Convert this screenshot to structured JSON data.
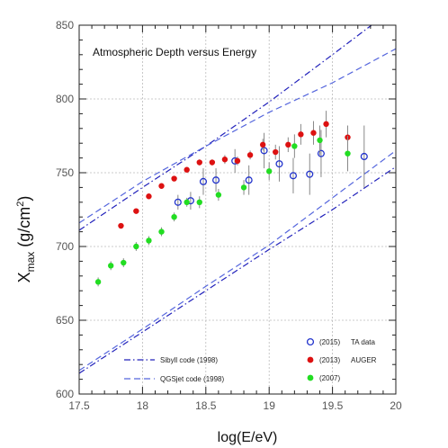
{
  "chart_data": {
    "type": "scatter",
    "title": "Atmospheric Depth versus Energy",
    "xlabel": "log(E/eV)",
    "ylabel_main": "X",
    "ylabel_sub": "max",
    "ylabel_unit_open": " (g/cm",
    "ylabel_unit_sup": "2",
    "ylabel_unit_close": ")",
    "xlim": [
      17.5,
      20
    ],
    "ylim": [
      600,
      850
    ],
    "x_ticks": [
      {
        "value": 17.5,
        "label": "17.5"
      },
      {
        "value": 18.0,
        "label": "18"
      },
      {
        "value": 18.5,
        "label": "18.5"
      },
      {
        "value": 19.0,
        "label": "19"
      },
      {
        "value": 19.5,
        "label": "19.5"
      },
      {
        "value": 20.0,
        "label": "20"
      }
    ],
    "y_ticks": [
      {
        "value": 600,
        "label": "600"
      },
      {
        "value": 650,
        "label": "650"
      },
      {
        "value": 700,
        "label": "700"
      },
      {
        "value": 750,
        "label": "750"
      },
      {
        "value": 800,
        "label": "800"
      },
      {
        "value": 850,
        "label": "850"
      }
    ],
    "grid": true,
    "legend_position": "bottom-right",
    "series": [
      {
        "name": "TA data",
        "year_label": "(2015)",
        "marker": "open-circle",
        "color": "#2233cc",
        "points": [
          {
            "x": 18.28,
            "y": 730,
            "err": 5
          },
          {
            "x": 18.38,
            "y": 731,
            "err": 6
          },
          {
            "x": 18.48,
            "y": 744,
            "err": 9
          },
          {
            "x": 18.58,
            "y": 745,
            "err": 8
          },
          {
            "x": 18.73,
            "y": 758,
            "err": 8
          },
          {
            "x": 18.84,
            "y": 745,
            "err": 10
          },
          {
            "x": 18.96,
            "y": 765,
            "err": 12
          },
          {
            "x": 19.08,
            "y": 756,
            "err": 12
          },
          {
            "x": 19.19,
            "y": 748,
            "err": 12
          },
          {
            "x": 19.32,
            "y": 749,
            "err": 14
          },
          {
            "x": 19.41,
            "y": 763,
            "err": 16
          },
          {
            "x": 19.75,
            "y": 761,
            "err": 21
          }
        ]
      },
      {
        "name": "AUGER",
        "year_label": "(2013)",
        "marker": "filled-circle",
        "color": "#dd1111",
        "points": [
          {
            "x": 17.83,
            "y": 714,
            "err": 1
          },
          {
            "x": 17.95,
            "y": 724,
            "err": 1
          },
          {
            "x": 18.05,
            "y": 734,
            "err": 1
          },
          {
            "x": 18.15,
            "y": 741,
            "err": 1
          },
          {
            "x": 18.25,
            "y": 746,
            "err": 1
          },
          {
            "x": 18.35,
            "y": 752,
            "err": 1
          },
          {
            "x": 18.45,
            "y": 757,
            "err": 2
          },
          {
            "x": 18.55,
            "y": 757,
            "err": 2
          },
          {
            "x": 18.65,
            "y": 759,
            "err": 3
          },
          {
            "x": 18.75,
            "y": 758,
            "err": 3
          },
          {
            "x": 18.85,
            "y": 762,
            "err": 3
          },
          {
            "x": 18.95,
            "y": 769,
            "err": 4
          },
          {
            "x": 19.05,
            "y": 764,
            "err": 5
          },
          {
            "x": 19.15,
            "y": 769,
            "err": 5
          },
          {
            "x": 19.25,
            "y": 776,
            "err": 7
          },
          {
            "x": 19.35,
            "y": 777,
            "err": 8
          },
          {
            "x": 19.45,
            "y": 783,
            "err": 9
          },
          {
            "x": 19.62,
            "y": 774,
            "err": 8
          }
        ]
      },
      {
        "name": "",
        "year_label": "(2007)",
        "marker": "filled-circle",
        "color": "#22dd22",
        "points": [
          {
            "x": 17.65,
            "y": 676,
            "err": 3
          },
          {
            "x": 17.75,
            "y": 687,
            "err": 3
          },
          {
            "x": 17.85,
            "y": 689,
            "err": 3
          },
          {
            "x": 17.95,
            "y": 700,
            "err": 3
          },
          {
            "x": 18.05,
            "y": 704,
            "err": 3
          },
          {
            "x": 18.15,
            "y": 710,
            "err": 3
          },
          {
            "x": 18.25,
            "y": 720,
            "err": 3
          },
          {
            "x": 18.35,
            "y": 730,
            "err": 3
          },
          {
            "x": 18.45,
            "y": 730,
            "err": 4
          },
          {
            "x": 18.6,
            "y": 735,
            "err": 4
          },
          {
            "x": 18.8,
            "y": 740,
            "err": 5
          },
          {
            "x": 19.0,
            "y": 751,
            "err": 6
          },
          {
            "x": 19.2,
            "y": 768,
            "err": 8
          },
          {
            "x": 19.4,
            "y": 772,
            "err": 10
          },
          {
            "x": 19.62,
            "y": 763,
            "err": 12
          }
        ]
      }
    ],
    "models": [
      {
        "name": "Sibyll code (1998)",
        "style": "dash-dot",
        "color": "#2222bb",
        "curves": [
          [
            [
              17.5,
              711
            ],
            [
              18.0,
              740
            ],
            [
              18.5,
              768
            ],
            [
              19.0,
              798
            ],
            [
              19.5,
              830
            ],
            [
              19.9,
              856
            ]
          ],
          [
            [
              17.5,
              614
            ],
            [
              18.0,
              642
            ],
            [
              18.5,
              670
            ],
            [
              19.0,
              698
            ],
            [
              19.5,
              725
            ],
            [
              20.0,
              754
            ]
          ]
        ]
      },
      {
        "name": "QGSjet code (1998)",
        "style": "dashed",
        "color": "#5566dd",
        "curves": [
          [
            [
              17.5,
              716
            ],
            [
              18.0,
              744
            ],
            [
              18.5,
              768
            ],
            [
              19.0,
              791
            ],
            [
              19.5,
              811
            ],
            [
              20.0,
              834
            ]
          ],
          [
            [
              17.5,
              616
            ],
            [
              18.0,
              644
            ],
            [
              18.5,
              673
            ],
            [
              19.0,
              701
            ],
            [
              19.5,
              733
            ],
            [
              20.0,
              765
            ]
          ]
        ]
      }
    ]
  }
}
